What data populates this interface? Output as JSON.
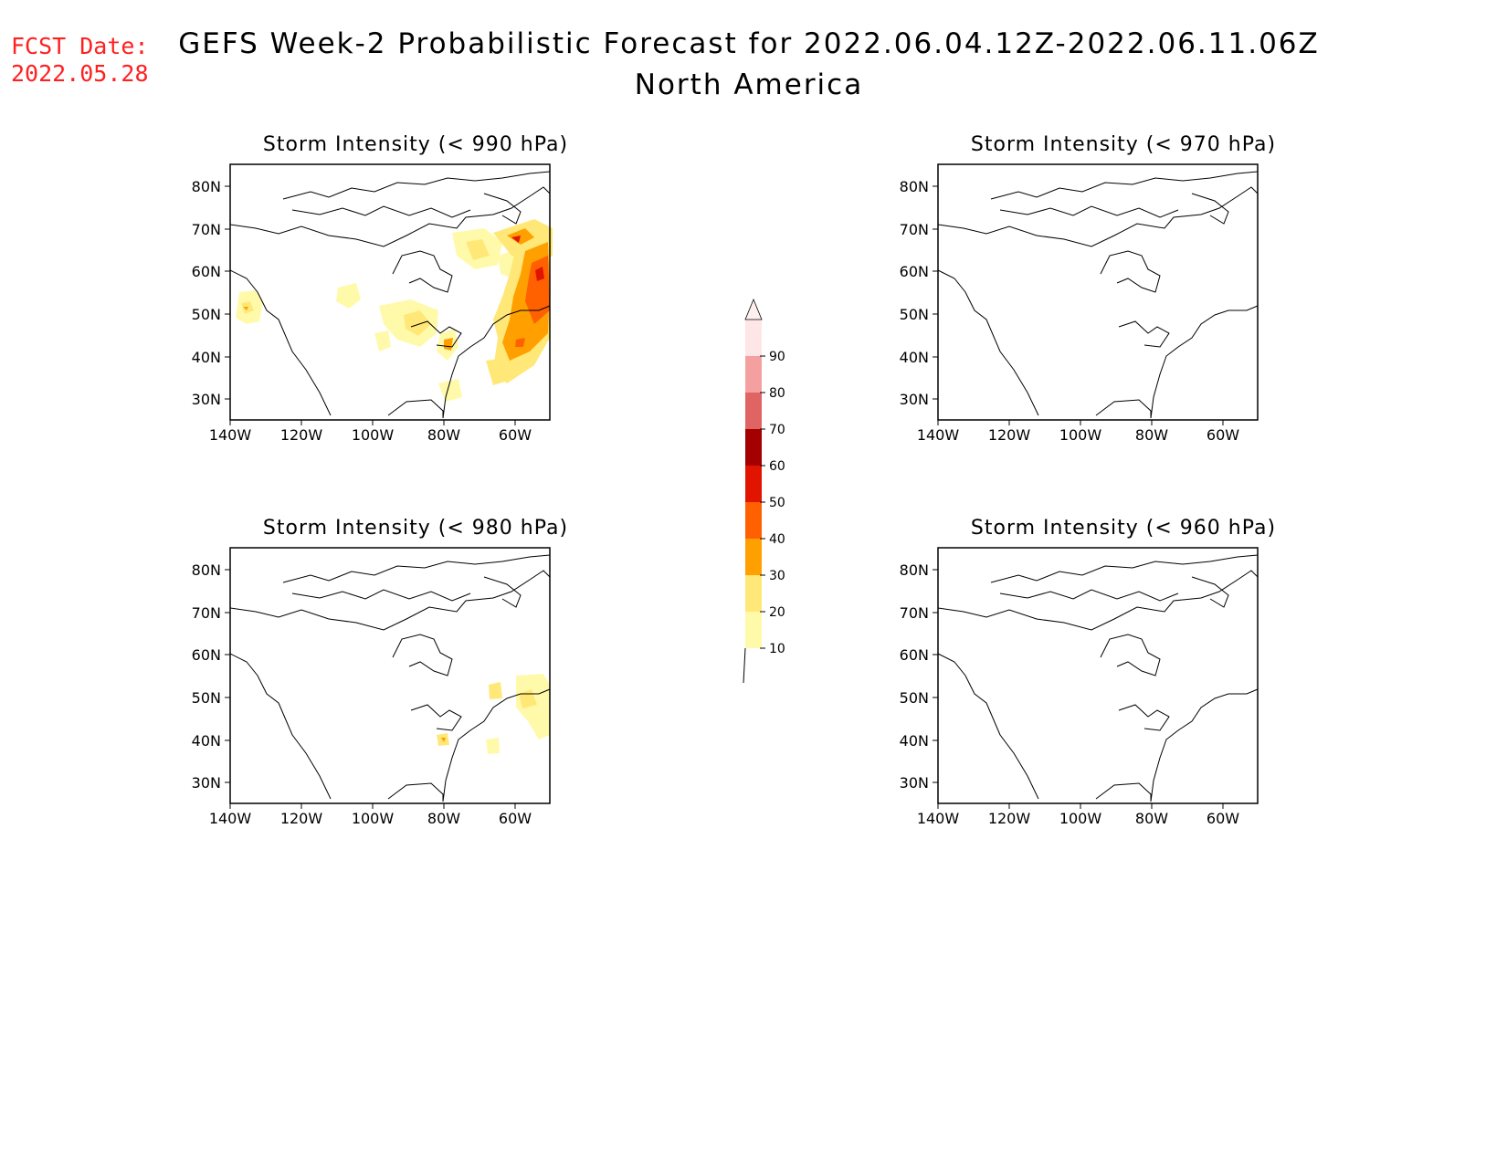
{
  "header": {
    "fcst_label": "FCST Date:",
    "fcst_date": "2022.05.28",
    "title": "GEFS Week-2 Probabilistic Forecast for 2022.06.04.12Z-2022.06.11.06Z",
    "subtitle": "North America"
  },
  "axes": {
    "lat_labels": [
      "80N",
      "70N",
      "60N",
      "50N",
      "40N",
      "30N"
    ],
    "lon_labels": [
      "140W",
      "120W",
      "100W",
      "80W",
      "60W"
    ]
  },
  "panels": [
    {
      "title": "Storm Intensity (< 990 hPa)"
    },
    {
      "title": "Storm Intensity (< 970 hPa)"
    },
    {
      "title": "Storm Intensity (< 980 hPa)"
    },
    {
      "title": "Storm Intensity (< 960 hPa)"
    }
  ],
  "colorbar": {
    "labels": [
      "10",
      "20",
      "30",
      "40",
      "50",
      "60",
      "70",
      "80",
      "90"
    ],
    "colors": [
      "#fffaaa",
      "#ffe878",
      "#ffa000",
      "#ff6000",
      "#e11400",
      "#a50000",
      "#e16464",
      "#f5a0a0",
      "#ffe6e6"
    ]
  }
}
